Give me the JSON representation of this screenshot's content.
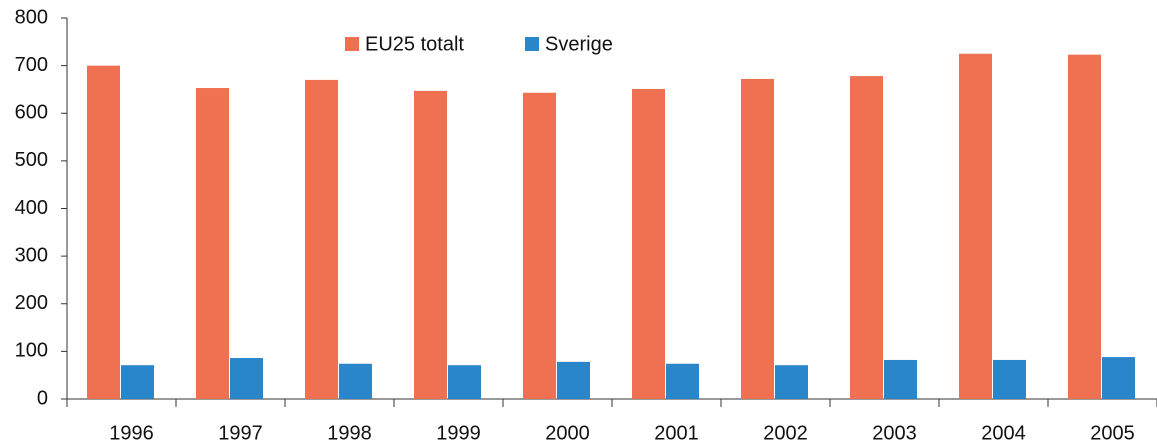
{
  "chart_data": {
    "type": "bar",
    "categories": [
      "1996",
      "1997",
      "1998",
      "1999",
      "2000",
      "2001",
      "2002",
      "2003",
      "2004",
      "2005"
    ],
    "series": [
      {
        "name": "EU25 totalt",
        "color": "#f07152",
        "values": [
          700,
          653,
          670,
          647,
          643,
          651,
          672,
          678,
          725,
          723
        ]
      },
      {
        "name": "Sverige",
        "color": "#2a86cb",
        "values": [
          71,
          86,
          74,
          71,
          78,
          74,
          71,
          82,
          82,
          88
        ]
      }
    ],
    "ylim": [
      0,
      800
    ],
    "yticks": [
      0,
      100,
      200,
      300,
      400,
      500,
      600,
      700,
      800
    ],
    "grid": false
  }
}
